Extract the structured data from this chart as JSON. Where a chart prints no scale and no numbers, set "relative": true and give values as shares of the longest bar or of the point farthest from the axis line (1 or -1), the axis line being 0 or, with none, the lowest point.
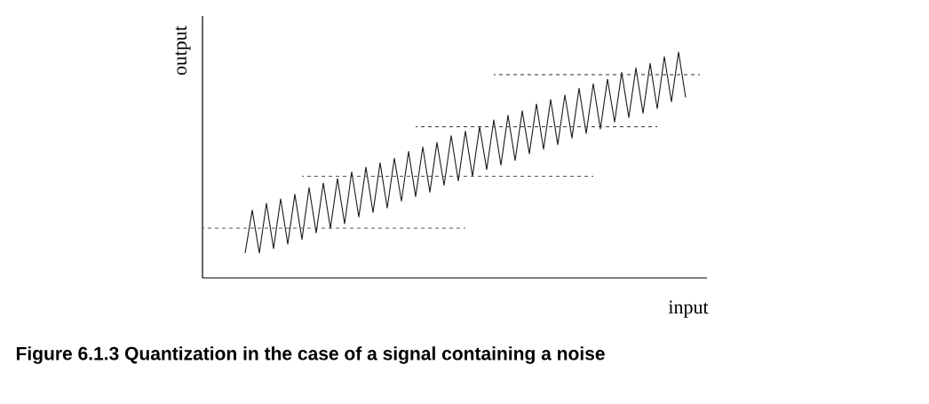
{
  "chart_data": {
    "type": "line",
    "title": "Figure 6.1.3  Quantization in the case of a signal containing a noise",
    "xlabel": "input",
    "ylabel": "output",
    "relative": true,
    "categories": [
      null,
      null,
      null,
      null,
      null,
      null,
      null,
      null,
      null,
      null,
      null,
      null,
      null,
      null,
      null,
      null,
      null,
      null,
      null,
      null,
      null,
      null,
      null,
      null,
      null,
      null,
      null,
      null,
      null,
      null,
      null,
      null,
      null,
      null,
      null,
      null,
      null,
      null,
      null,
      null,
      null,
      null,
      null,
      null,
      null,
      null,
      null,
      null,
      null,
      null,
      null,
      null,
      null,
      null,
      null,
      null,
      null,
      null,
      null,
      null,
      null,
      null,
      null,
      null,
      null,
      null,
      null,
      null,
      null,
      null,
      null,
      null
    ],
    "series": [
      {
        "color": "#1a1a1a",
        "line_style": "solid",
        "values": [
          null,
          null,
          null,
          null,
          null,
          null,
          0.11,
          0.3,
          0.11,
          0.33,
          0.13,
          0.35,
          0.15,
          0.37,
          0.17,
          0.4,
          0.2,
          0.42,
          0.22,
          0.44,
          0.24,
          0.47,
          0.27,
          0.49,
          0.29,
          0.51,
          0.31,
          0.53,
          0.34,
          0.56,
          0.36,
          0.58,
          0.38,
          0.6,
          0.41,
          0.63,
          0.43,
          0.65,
          0.45,
          0.67,
          0.48,
          0.7,
          0.5,
          0.72,
          0.52,
          0.74,
          0.55,
          0.77,
          0.57,
          0.79,
          0.59,
          0.81,
          0.62,
          0.84,
          0.64,
          0.86,
          0.66,
          0.88,
          0.69,
          0.91,
          0.71,
          0.93,
          0.73,
          0.95,
          0.75,
          0.98,
          0.78,
          1.0,
          0.8,
          null,
          null,
          null
        ]
      },
      {
        "color": "#555555",
        "line_style": "dashed",
        "values": [
          0.22,
          0.22,
          0.22,
          0.22,
          0.22,
          0.22,
          0.22,
          0.22,
          0.22,
          0.22,
          0.22,
          0.22,
          0.22,
          0.22,
          0.22,
          0.22,
          0.22,
          0.22,
          0.22,
          0.22,
          0.22,
          0.22,
          0.22,
          0.22,
          0.22,
          0.22,
          0.22,
          0.22,
          0.22,
          0.22,
          0.22,
          0.22,
          0.22,
          0.22,
          0.22,
          0.22,
          0.22,
          0.22,
          null,
          null,
          null,
          null,
          null,
          null,
          null,
          null,
          null,
          null,
          null,
          null,
          null,
          null,
          null,
          null,
          null,
          null,
          null,
          null,
          null,
          null,
          null,
          null,
          null,
          null,
          null,
          null,
          null,
          null,
          null,
          null,
          null,
          null
        ]
      },
      {
        "color": "#555555",
        "line_style": "dashed",
        "values": [
          null,
          null,
          null,
          null,
          null,
          null,
          null,
          null,
          null,
          null,
          null,
          null,
          null,
          null,
          0.45,
          0.45,
          0.45,
          0.45,
          0.45,
          0.45,
          0.45,
          0.45,
          0.45,
          0.45,
          0.45,
          0.45,
          0.45,
          0.45,
          0.45,
          0.45,
          0.45,
          0.45,
          0.45,
          0.45,
          0.45,
          0.45,
          0.45,
          0.45,
          0.45,
          0.45,
          0.45,
          0.45,
          0.45,
          0.45,
          0.45,
          0.45,
          0.45,
          0.45,
          0.45,
          0.45,
          0.45,
          0.45,
          0.45,
          0.45,
          0.45,
          0.45,
          null,
          null,
          null,
          null,
          null,
          null,
          null,
          null,
          null,
          null,
          null,
          null,
          null,
          null,
          null,
          null
        ]
      },
      {
        "color": "#555555",
        "line_style": "dashed",
        "values": [
          null,
          null,
          null,
          null,
          null,
          null,
          null,
          null,
          null,
          null,
          null,
          null,
          null,
          null,
          null,
          null,
          null,
          null,
          null,
          null,
          null,
          null,
          null,
          null,
          null,
          null,
          null,
          null,
          null,
          null,
          0.67,
          0.67,
          0.67,
          0.67,
          0.67,
          0.67,
          0.67,
          0.67,
          0.67,
          0.67,
          0.67,
          0.67,
          0.67,
          0.67,
          0.67,
          0.67,
          0.67,
          0.67,
          0.67,
          0.67,
          0.67,
          0.67,
          0.67,
          0.67,
          0.67,
          0.67,
          0.67,
          0.67,
          0.67,
          0.67,
          0.67,
          0.67,
          0.67,
          0.67,
          0.67,
          null,
          null,
          null,
          null,
          null,
          null,
          null
        ]
      },
      {
        "color": "#555555",
        "line_style": "dashed",
        "values": [
          null,
          null,
          null,
          null,
          null,
          null,
          null,
          null,
          null,
          null,
          null,
          null,
          null,
          null,
          null,
          null,
          null,
          null,
          null,
          null,
          null,
          null,
          null,
          null,
          null,
          null,
          null,
          null,
          null,
          null,
          null,
          null,
          null,
          null,
          null,
          null,
          null,
          null,
          null,
          null,
          null,
          0.9,
          0.9,
          0.9,
          0.9,
          0.9,
          0.9,
          0.9,
          0.9,
          0.9,
          0.9,
          0.9,
          0.9,
          0.9,
          0.9,
          0.9,
          0.9,
          0.9,
          0.9,
          0.9,
          0.9,
          0.9,
          0.9,
          0.9,
          0.9,
          0.9,
          0.9,
          0.9,
          0.9,
          0.9,
          0.9,
          null
        ]
      }
    ]
  }
}
